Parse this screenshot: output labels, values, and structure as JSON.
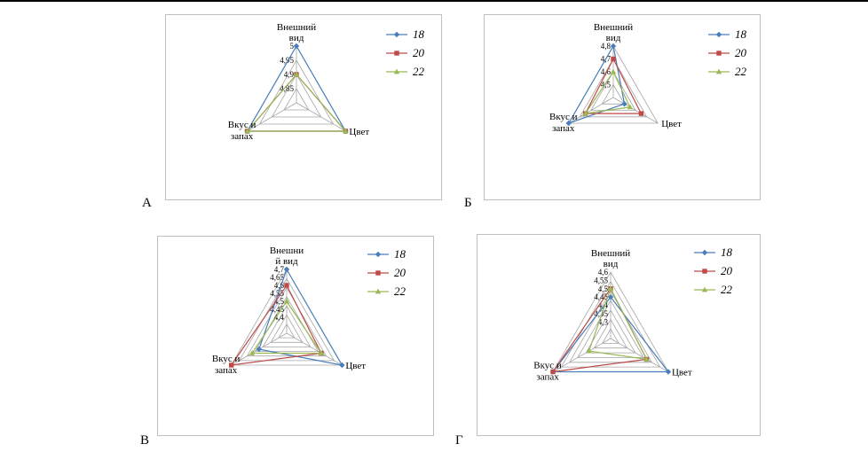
{
  "panels": [
    "А",
    "Б",
    "В",
    "Г"
  ],
  "colors": {
    "18": "#4a7ebb",
    "20": "#be4b48",
    "22": "#98b954",
    "grid": "#a6a6a6"
  },
  "chart_data": [
    {
      "type": "radar",
      "axes": [
        "Внешний вид",
        "Цвет",
        "Вкус и запах"
      ],
      "axis_label_lines": [
        [
          "Внешний",
          "вид"
        ],
        [
          "Цвет"
        ],
        [
          "Вкус и",
          "запах"
        ]
      ],
      "rmin": 4.8,
      "rmax": 5.0,
      "ticks": [
        4.85,
        4.9,
        4.95,
        5
      ],
      "tick_labels": [
        "4,85",
        "4,9",
        "4,95",
        "5"
      ],
      "gridlines": 4,
      "series": [
        {
          "name": "18",
          "marker": "diamond",
          "values": [
            5.0,
            5.0,
            5.0
          ]
        },
        {
          "name": "20",
          "marker": "square",
          "values": [
            4.9,
            5.0,
            5.0
          ]
        },
        {
          "name": "22",
          "marker": "triangle",
          "values": [
            4.9,
            5.0,
            5.0
          ]
        }
      ]
    },
    {
      "type": "radar",
      "axes": [
        "Внешний вид",
        "Цвет",
        "Вкус и запах"
      ],
      "axis_label_lines": [
        [
          "Внешний",
          "вид"
        ],
        [
          "Цвет"
        ],
        [
          "Вкус и",
          "запах"
        ]
      ],
      "rmin": 4.4,
      "rmax": 4.8,
      "ticks": [
        4.5,
        4.6,
        4.7,
        4.8
      ],
      "tick_labels": [
        "4,5",
        "4,6",
        "4,7",
        "4,8"
      ],
      "gridlines": 4,
      "series": [
        {
          "name": "18",
          "marker": "diamond",
          "values": [
            4.8,
            4.5,
            4.8
          ]
        },
        {
          "name": "20",
          "marker": "square",
          "values": [
            4.7,
            4.65,
            4.65
          ]
        },
        {
          "name": "22",
          "marker": "triangle",
          "values": [
            4.6,
            4.55,
            4.65
          ]
        }
      ]
    },
    {
      "type": "radar",
      "axes": [
        "Внешний вид",
        "Цвет",
        "Вкус и запах"
      ],
      "axis_label_lines": [
        [
          "Внешни",
          "й вид"
        ],
        [
          "Цвет"
        ],
        [
          "Вкус и",
          "запах"
        ]
      ],
      "rmin": 4.3,
      "rmax": 4.7,
      "ticks": [
        4.4,
        4.45,
        4.5,
        4.55,
        4.6,
        4.65,
        4.7
      ],
      "tick_labels": [
        "4,4",
        "4,45",
        "4,5",
        "4,55",
        "4,6",
        "4,65",
        "4,7"
      ],
      "gridlines": 7,
      "series": [
        {
          "name": "18",
          "marker": "diamond",
          "values": [
            4.7,
            4.7,
            4.5
          ]
        },
        {
          "name": "20",
          "marker": "square",
          "values": [
            4.6,
            4.55,
            4.7
          ]
        },
        {
          "name": "22",
          "marker": "triangle",
          "values": [
            4.5,
            4.55,
            4.55
          ]
        }
      ]
    },
    {
      "type": "radar",
      "axes": [
        "Внешний вид",
        "Цвет",
        "Вкус и запах"
      ],
      "axis_label_lines": [
        [
          "Внешний",
          "вид"
        ],
        [
          "Цвет"
        ],
        [
          "Вкус и",
          "запах"
        ]
      ],
      "rmin": 4.2,
      "rmax": 4.6,
      "ticks": [
        4.3,
        4.35,
        4.4,
        4.45,
        4.5,
        4.55,
        4.6
      ],
      "tick_labels": [
        "4,3",
        "4,35",
        "4,4",
        "4,45",
        "4,5",
        "4,55",
        "4,6"
      ],
      "gridlines": 7,
      "series": [
        {
          "name": "18",
          "marker": "diamond",
          "values": [
            4.45,
            4.6,
            4.6
          ]
        },
        {
          "name": "20",
          "marker": "square",
          "values": [
            4.5,
            4.45,
            4.6
          ]
        },
        {
          "name": "22",
          "marker": "triangle",
          "values": [
            4.5,
            4.45,
            4.35
          ]
        }
      ]
    }
  ]
}
